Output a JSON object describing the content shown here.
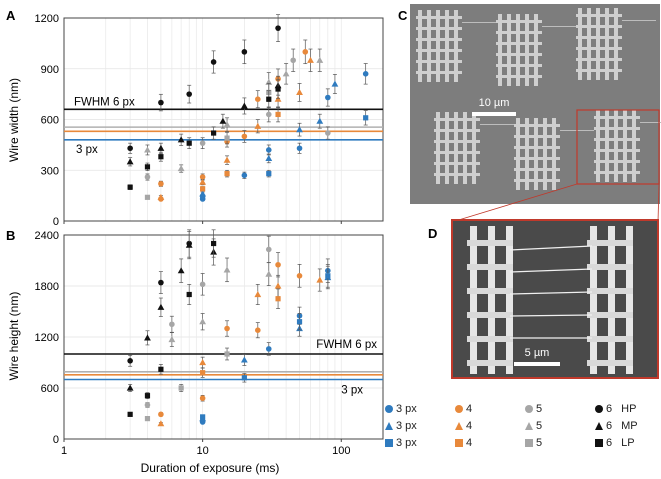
{
  "panels": {
    "a": {
      "letter": "A",
      "ylabel": "Wire width (nm)",
      "ylim": [
        0,
        1200
      ],
      "yticks": [
        "0",
        "300",
        "600",
        "900",
        "1200"
      ]
    },
    "b": {
      "letter": "B",
      "ylabel": "Wire height (nm)",
      "ylim": [
        0,
        2400
      ],
      "yticks": [
        "0",
        "600",
        "1200",
        "1800",
        "2400"
      ]
    },
    "c": {
      "letter": "C",
      "scalebar": "10 µm"
    },
    "d": {
      "letter": "D",
      "scalebar": "5 µm"
    }
  },
  "xlabel": "Duration of exposure (ms)",
  "xticks": [
    "1",
    "10",
    "100"
  ],
  "colors": {
    "px3": "#2f7bbf",
    "px4": "#e8893b",
    "px5": "#a6a6a6",
    "px6": "#111111",
    "line3": "#2f7bbf",
    "line4": "#e8893b",
    "line5": "#b0b0b0",
    "line6": "#111111"
  },
  "legend": {
    "rows": [
      [
        "3 px",
        "4",
        "5",
        "6",
        "HP"
      ],
      [
        "3 px",
        "4",
        "5",
        "6",
        "MP"
      ],
      [
        "3 px",
        "4",
        "5",
        "6",
        "LP"
      ]
    ]
  },
  "chart_data": [
    {
      "type": "scatter",
      "xscale": "log",
      "xlim": [
        1,
        200
      ],
      "ylim": [
        0,
        1200
      ],
      "ylabel": "Wire width (nm)",
      "xlabel": "Duration of exposure (ms)",
      "hlines": [
        {
          "label": "FWHM 6 px",
          "y": 660,
          "color": "#111111"
        },
        {
          "label": "",
          "y": 555,
          "color": "#b0b0b0"
        },
        {
          "label": "",
          "y": 530,
          "color": "#e8893b"
        },
        {
          "label": "3 px",
          "y": 480,
          "color": "#2f7bbf"
        }
      ],
      "series": [
        {
          "size": "3 px",
          "power": "HP",
          "marker": "circle",
          "color": "#2f7bbf",
          "points": [
            [
              10,
              130
            ],
            [
              20,
              270
            ],
            [
              30,
              420
            ],
            [
              50,
              430
            ],
            [
              80,
              730
            ],
            [
              150,
              870
            ]
          ]
        },
        {
          "size": "3 px",
          "power": "MP",
          "marker": "triangle",
          "color": "#2f7bbf",
          "points": [
            [
              10,
              160
            ],
            [
              30,
              370
            ],
            [
              50,
              540
            ],
            [
              70,
              590
            ],
            [
              90,
              810
            ]
          ]
        },
        {
          "size": "3 px",
          "power": "LP",
          "marker": "square",
          "color": "#2f7bbf",
          "points": [
            [
              10,
              140
            ],
            [
              30,
              280
            ],
            [
              150,
              610
            ]
          ]
        },
        {
          "size": "4",
          "power": "HP",
          "marker": "circle",
          "color": "#e8893b",
          "points": [
            [
              5,
              130
            ],
            [
              5,
              220
            ],
            [
              10,
              260
            ],
            [
              15,
              470
            ],
            [
              20,
              500
            ],
            [
              25,
              720
            ],
            [
              35,
              840
            ],
            [
              55,
              1000
            ]
          ]
        },
        {
          "size": "4",
          "power": "MP",
          "marker": "triangle",
          "color": "#e8893b",
          "points": [
            [
              5,
              140
            ],
            [
              10,
              230
            ],
            [
              15,
              360
            ],
            [
              25,
              560
            ],
            [
              35,
              720
            ],
            [
              50,
              760
            ],
            [
              60,
              950
            ]
          ]
        },
        {
          "size": "4",
          "power": "LP",
          "marker": "square",
          "color": "#e8893b",
          "points": [
            [
              10,
              190
            ],
            [
              15,
              280
            ],
            [
              35,
              630
            ]
          ]
        },
        {
          "size": "5",
          "power": "HP",
          "marker": "circle",
          "color": "#a6a6a6",
          "points": [
            [
              4,
              260
            ],
            [
              10,
              460
            ],
            [
              30,
              630
            ],
            [
              45,
              950
            ],
            [
              80,
              520
            ]
          ]
        },
        {
          "size": "5",
          "power": "MP",
          "marker": "triangle",
          "color": "#a6a6a6",
          "points": [
            [
              4,
              420
            ],
            [
              7,
              310
            ],
            [
              15,
              570
            ],
            [
              30,
              820
            ],
            [
              40,
              870
            ],
            [
              70,
              950
            ]
          ]
        },
        {
          "size": "5",
          "power": "LP",
          "marker": "square",
          "color": "#a6a6a6",
          "points": [
            [
              4,
              140
            ],
            [
              15,
              490
            ],
            [
              30,
              760
            ]
          ]
        },
        {
          "size": "6",
          "power": "HP",
          "marker": "circle",
          "color": "#111111",
          "points": [
            [
              3,
              430
            ],
            [
              5,
              700
            ],
            [
              8,
              750
            ],
            [
              12,
              940
            ],
            [
              20,
              1000
            ],
            [
              35,
              1140
            ]
          ]
        },
        {
          "size": "6",
          "power": "MP",
          "marker": "triangle",
          "color": "#111111",
          "points": [
            [
              3,
              350
            ],
            [
              5,
              430
            ],
            [
              7,
              480
            ],
            [
              14,
              590
            ],
            [
              20,
              680
            ],
            [
              35,
              800
            ]
          ]
        },
        {
          "size": "6",
          "power": "LP",
          "marker": "square",
          "color": "#111111",
          "points": [
            [
              3,
              200
            ],
            [
              4,
              320
            ],
            [
              5,
              380
            ],
            [
              8,
              460
            ],
            [
              12,
              520
            ],
            [
              30,
              720
            ],
            [
              35,
              780
            ]
          ]
        }
      ]
    },
    {
      "type": "scatter",
      "xscale": "log",
      "xlim": [
        1,
        200
      ],
      "ylim": [
        0,
        2400
      ],
      "ylabel": "Wire height (nm)",
      "xlabel": "Duration of exposure (ms)",
      "hlines": [
        {
          "label": "FWHM 6 px",
          "y": 1000,
          "color": "#111111"
        },
        {
          "label": "",
          "y": 790,
          "color": "#b0b0b0"
        },
        {
          "label": "",
          "y": 755,
          "color": "#e8893b"
        },
        {
          "label": "3 px",
          "y": 700,
          "color": "#2f7bbf"
        }
      ],
      "series": [
        {
          "size": "3 px",
          "power": "HP",
          "marker": "circle",
          "color": "#2f7bbf",
          "points": [
            [
              10,
              200
            ],
            [
              30,
              1060
            ],
            [
              50,
              1450
            ],
            [
              80,
              1980
            ]
          ]
        },
        {
          "size": "3 px",
          "power": "MP",
          "marker": "triangle",
          "color": "#2f7bbf",
          "points": [
            [
              10,
              240
            ],
            [
              20,
              930
            ],
            [
              50,
              1300
            ],
            [
              80,
              1900
            ]
          ]
        },
        {
          "size": "3 px",
          "power": "LP",
          "marker": "square",
          "color": "#2f7bbf",
          "points": [
            [
              10,
              260
            ],
            [
              20,
              720
            ],
            [
              50,
              1380
            ],
            [
              80,
              1920
            ]
          ]
        },
        {
          "size": "4",
          "power": "HP",
          "marker": "circle",
          "color": "#e8893b",
          "points": [
            [
              5,
              290
            ],
            [
              10,
              480
            ],
            [
              15,
              1300
            ],
            [
              25,
              1280
            ],
            [
              35,
              2050
            ],
            [
              50,
              1920
            ]
          ]
        },
        {
          "size": "4",
          "power": "MP",
          "marker": "triangle",
          "color": "#e8893b",
          "points": [
            [
              5,
              180
            ],
            [
              10,
              900
            ],
            [
              25,
              1700
            ],
            [
              35,
              1800
            ],
            [
              70,
              1870
            ]
          ]
        },
        {
          "size": "4",
          "power": "LP",
          "marker": "square",
          "color": "#e8893b",
          "points": [
            [
              10,
              780
            ],
            [
              35,
              1650
            ]
          ]
        },
        {
          "size": "5",
          "power": "HP",
          "marker": "circle",
          "color": "#a6a6a6",
          "points": [
            [
              4,
              400
            ],
            [
              6,
              1350
            ],
            [
              10,
              1820
            ],
            [
              30,
              2230
            ]
          ]
        },
        {
          "size": "5",
          "power": "MP",
          "marker": "triangle",
          "color": "#a6a6a6",
          "points": [
            [
              6,
              1170
            ],
            [
              10,
              1380
            ],
            [
              15,
              1990
            ],
            [
              30,
              1940
            ]
          ]
        },
        {
          "size": "5",
          "power": "LP",
          "marker": "square",
          "color": "#a6a6a6",
          "points": [
            [
              4,
              240
            ],
            [
              7,
              600
            ],
            [
              15,
              1000
            ]
          ]
        },
        {
          "size": "6",
          "power": "HP",
          "marker": "circle",
          "color": "#111111",
          "points": [
            [
              3,
              920
            ],
            [
              5,
              1840
            ],
            [
              8,
              2300
            ]
          ]
        },
        {
          "size": "6",
          "power": "MP",
          "marker": "triangle",
          "color": "#111111",
          "points": [
            [
              3,
              600
            ],
            [
              4,
              1190
            ],
            [
              5,
              1550
            ],
            [
              7,
              1980
            ],
            [
              8,
              2280
            ],
            [
              12,
              2200
            ]
          ]
        },
        {
          "size": "6",
          "power": "LP",
          "marker": "square",
          "color": "#111111",
          "points": [
            [
              3,
              290
            ],
            [
              4,
              510
            ],
            [
              5,
              820
            ],
            [
              8,
              1700
            ],
            [
              12,
              2300
            ]
          ]
        }
      ]
    }
  ]
}
